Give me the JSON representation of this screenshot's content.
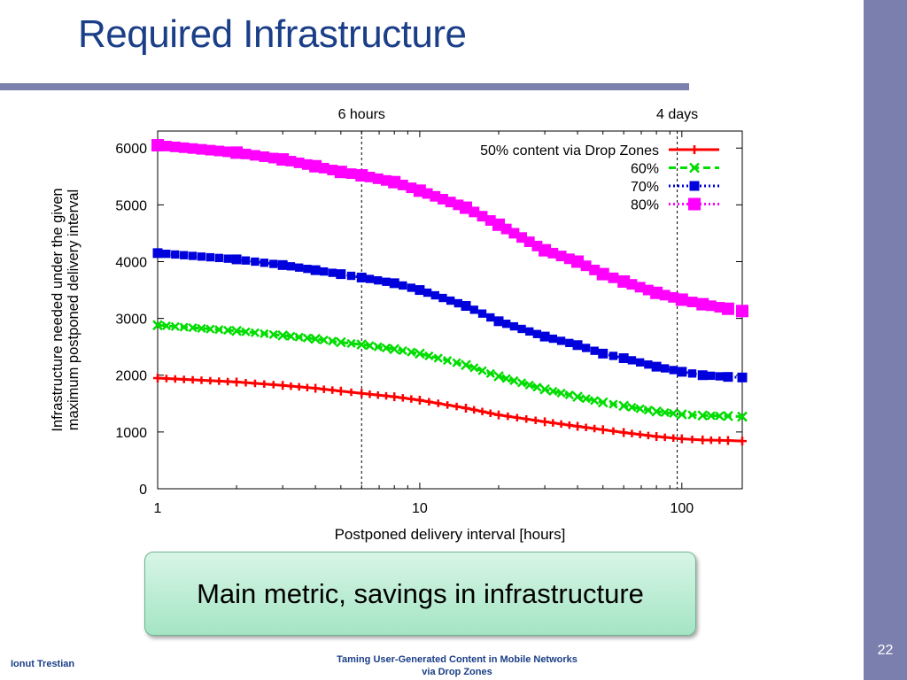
{
  "slide": {
    "title": "Required Infrastructure",
    "callout": "Main metric, savings in infrastructure",
    "author": "Ionut Trestian",
    "footer_line1": "Taming User-Generated  Content in Mobile Networks",
    "footer_line2": "via Drop Zones",
    "page_number": "22",
    "colors": {
      "title": "#1a3e87",
      "accent_bar": "#7b7fad",
      "callout_fill": "#b8ecd2"
    }
  },
  "chart_data": {
    "type": "line",
    "xlabel": "Postponed delivery interval [hours]",
    "ylabel_line1": "Infrastructure needed under the given",
    "ylabel_line2": "maximum postponed delivery interval",
    "x_scale": "log",
    "xlim": [
      1,
      170
    ],
    "ylim": [
      0,
      6300
    ],
    "x_ticks": [
      1,
      10,
      100
    ],
    "x_tick_labels": [
      "1",
      "10",
      "100"
    ],
    "y_ticks": [
      0,
      1000,
      2000,
      3000,
      4000,
      5000,
      6000
    ],
    "y_tick_labels": [
      "0",
      "1000",
      "2000",
      "3000",
      "4000",
      "5000",
      "6000"
    ],
    "grid": false,
    "legend_position": "top-right",
    "vlines": [
      {
        "x": 6,
        "label": "6 hours"
      },
      {
        "x": 96,
        "label": "4 days"
      }
    ],
    "x": [
      1,
      2,
      3,
      4,
      5,
      6,
      8,
      10,
      15,
      20,
      30,
      40,
      50,
      60,
      80,
      100,
      120,
      150,
      170
    ],
    "series": [
      {
        "name": "50% content via Drop Zones",
        "color": "#ff0000",
        "marker": "plus",
        "dash": "solid",
        "values": [
          1950,
          1880,
          1820,
          1770,
          1720,
          1680,
          1620,
          1560,
          1420,
          1300,
          1180,
          1100,
          1040,
          990,
          920,
          880,
          860,
          850,
          840
        ]
      },
      {
        "name": "60%",
        "color": "#00dd00",
        "marker": "cross",
        "dash": "dashed",
        "values": [
          2880,
          2780,
          2700,
          2640,
          2580,
          2540,
          2460,
          2380,
          2180,
          1980,
          1750,
          1620,
          1520,
          1460,
          1360,
          1310,
          1290,
          1280,
          1270
        ]
      },
      {
        "name": "70%",
        "color": "#0000dd",
        "marker": "square",
        "dash": "dotted",
        "values": [
          4150,
          4040,
          3940,
          3850,
          3780,
          3720,
          3620,
          3500,
          3220,
          2950,
          2680,
          2530,
          2380,
          2300,
          2150,
          2060,
          2000,
          1970,
          1960
        ]
      },
      {
        "name": "80%",
        "color": "#ff00ff",
        "marker": "square",
        "dash": "dotted",
        "values": [
          6050,
          5920,
          5800,
          5680,
          5580,
          5520,
          5400,
          5250,
          4950,
          4650,
          4200,
          4000,
          3780,
          3650,
          3450,
          3330,
          3250,
          3170,
          3130
        ]
      }
    ]
  }
}
